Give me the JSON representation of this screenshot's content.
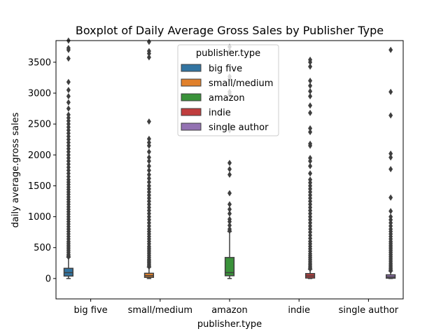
{
  "chart_data": {
    "type": "boxplot",
    "title": "Boxplot of Daily Average Gross Sales by Publisher Type",
    "xlabel": "publisher.type",
    "ylabel": "daily average.gross sales",
    "ylim": [
      -330,
      3850
    ],
    "yticks": [
      0,
      500,
      1000,
      1500,
      2000,
      2500,
      3000,
      3500
    ],
    "categories": [
      "big five",
      "small/medium",
      "amazon",
      "indie",
      "single author"
    ],
    "legend": {
      "title": "publisher.type",
      "position": "top-center"
    },
    "grid": false,
    "series": [
      {
        "name": "big five",
        "color": "#3274a1",
        "category_index": 0,
        "box": {
          "min": 0,
          "q1": 40,
          "median": 95,
          "q3": 165,
          "max": 345
        },
        "outliers": [
          350,
          370,
          390,
          420,
          450,
          480,
          510,
          540,
          570,
          600,
          640,
          680,
          720,
          760,
          800,
          840,
          880,
          920,
          960,
          1000,
          1040,
          1080,
          1120,
          1160,
          1200,
          1240,
          1280,
          1320,
          1360,
          1400,
          1440,
          1480,
          1520,
          1560,
          1600,
          1650,
          1700,
          1750,
          1800,
          1850,
          1900,
          1950,
          2000,
          2050,
          2100,
          2150,
          2200,
          2250,
          2300,
          2350,
          2400,
          2450,
          2500,
          2550,
          2600,
          2650,
          2750,
          2850,
          2950,
          3050,
          3180,
          3560,
          3700,
          3730,
          3850
        ]
      },
      {
        "name": "small/medium",
        "color": "#e1812c",
        "category_index": 1,
        "box": {
          "min": 0,
          "q1": 18,
          "median": 45,
          "q3": 85,
          "max": 185
        },
        "outliers": [
          190,
          210,
          230,
          250,
          270,
          290,
          310,
          340,
          370,
          400,
          430,
          460,
          490,
          520,
          560,
          600,
          640,
          680,
          720,
          760,
          800,
          850,
          900,
          950,
          1000,
          1050,
          1100,
          1150,
          1200,
          1250,
          1300,
          1350,
          1400,
          1450,
          1500,
          1560,
          1620,
          1680,
          1750,
          1820,
          1900,
          1960,
          2050,
          2150,
          2200,
          2260,
          2540,
          3580,
          3640,
          3680,
          3830
        ]
      },
      {
        "name": "amazon",
        "color": "#3a923a",
        "category_index": 2,
        "box": {
          "min": 0,
          "q1": 45,
          "median": 95,
          "q3": 340,
          "max": 760
        },
        "outliers": [
          770,
          800,
          860,
          920,
          960,
          1050,
          1120,
          1200,
          1380,
          1680,
          1770,
          1870,
          2400,
          2470,
          2980,
          3020,
          3230,
          3270,
          3680,
          3750
        ]
      },
      {
        "name": "indie",
        "color": "#c03d3e",
        "category_index": 3,
        "box": {
          "min": 0,
          "q1": 8,
          "median": 40,
          "q3": 80,
          "max": 150
        },
        "outliers": [
          155,
          175,
          200,
          225,
          250,
          280,
          310,
          340,
          370,
          400,
          440,
          480,
          520,
          560,
          600,
          650,
          700,
          750,
          800,
          850,
          900,
          950,
          1000,
          1050,
          1100,
          1150,
          1200,
          1250,
          1300,
          1350,
          1400,
          1450,
          1500,
          1550,
          1600,
          1700,
          1820,
          1900,
          1950,
          2150,
          2180,
          2370,
          2430,
          2680,
          2800,
          2950,
          3030,
          3120,
          3200,
          3430,
          3500,
          3540
        ]
      },
      {
        "name": "single author",
        "color": "#9372b2",
        "category_index": 4,
        "box": {
          "min": 0,
          "q1": 5,
          "median": 25,
          "q3": 60,
          "max": 120
        },
        "outliers": [
          125,
          145,
          165,
          190,
          215,
          240,
          270,
          300,
          330,
          360,
          390,
          420,
          450,
          480,
          510,
          540,
          570,
          600,
          640,
          680,
          720,
          760,
          800,
          850,
          900,
          950,
          1000,
          1090,
          1310,
          1770,
          1960,
          2020,
          2640,
          3020,
          3700
        ]
      }
    ]
  }
}
